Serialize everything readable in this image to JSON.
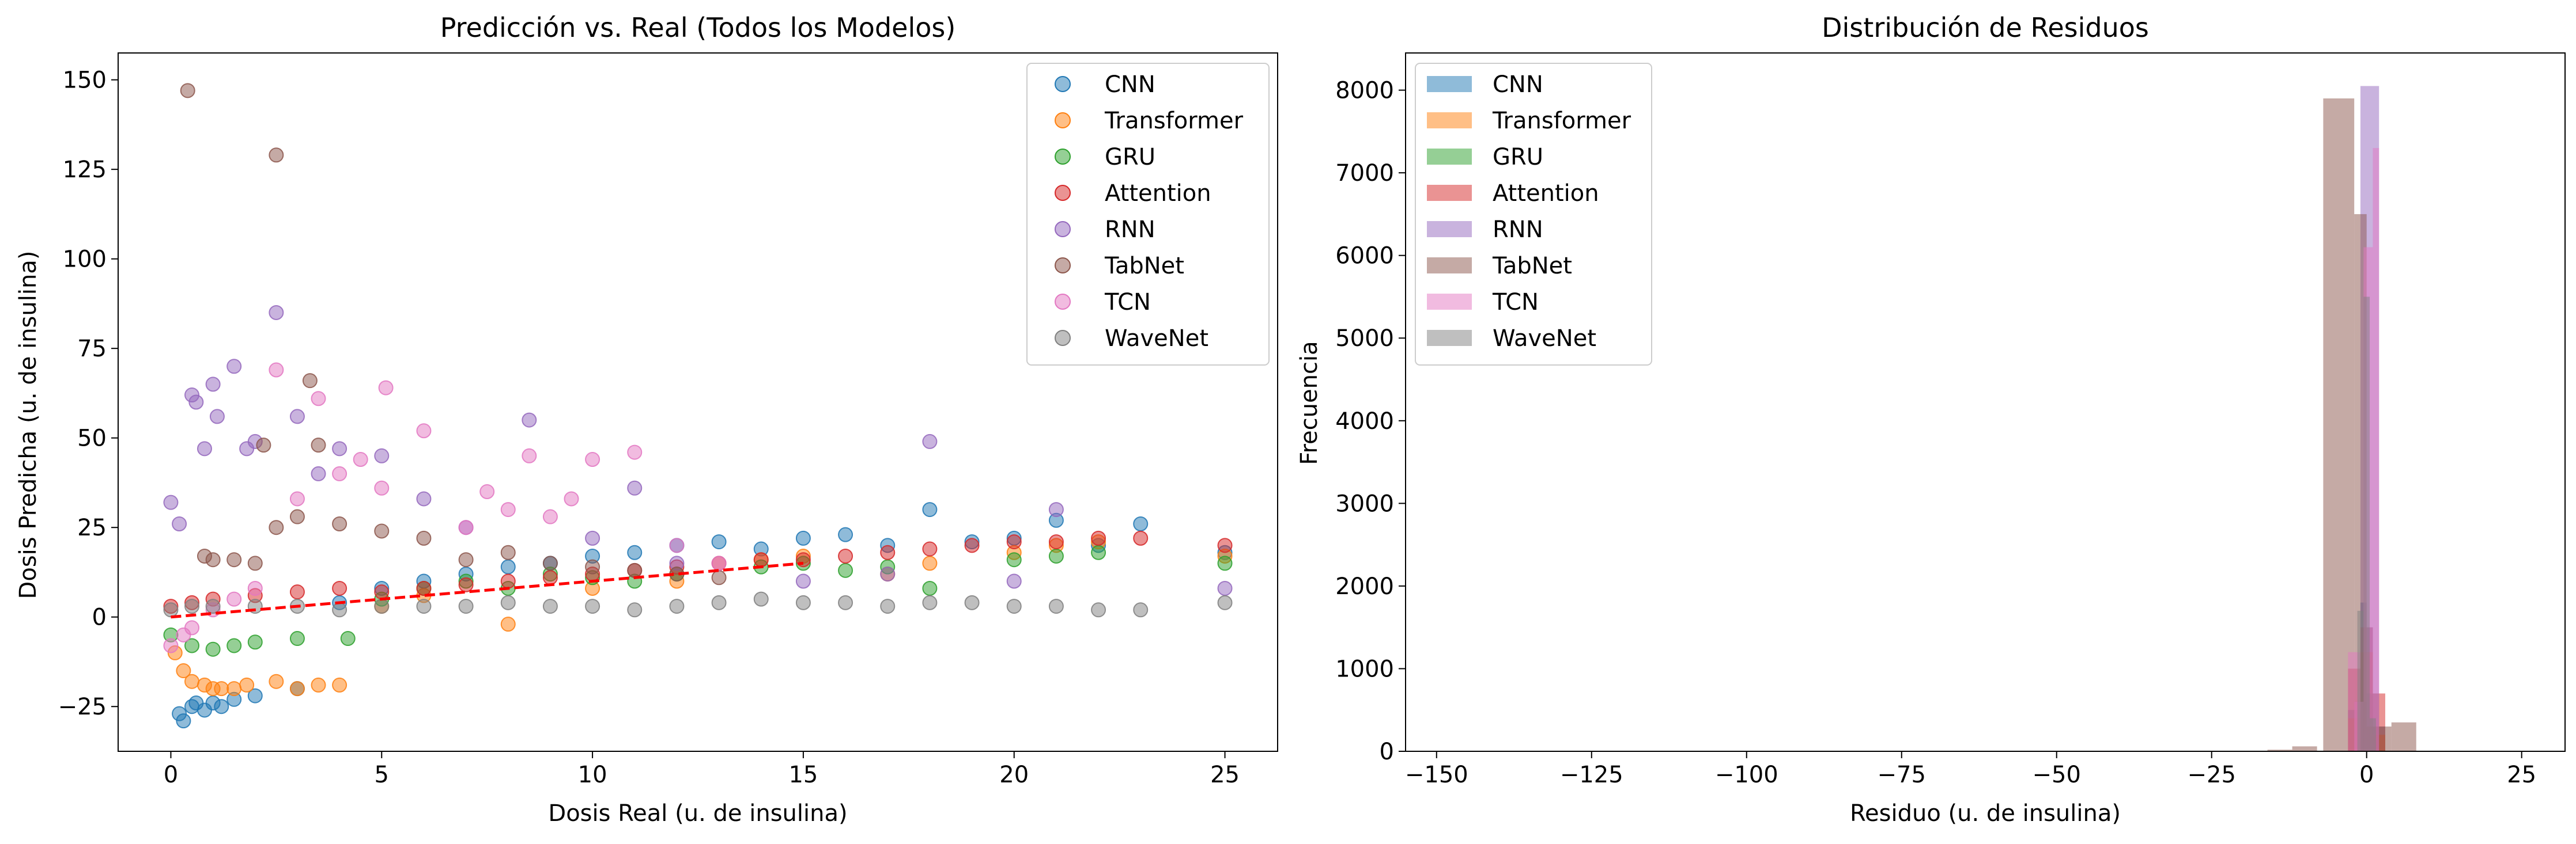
{
  "chart_data": [
    {
      "type": "scatter",
      "title": "Predicción vs. Real (Todos los Modelos)",
      "xlabel": "Dosis Real (u. de insulina)",
      "ylabel": "Dosis Predicha (u. de insulina)",
      "xlim": [
        -1.25,
        26.25
      ],
      "ylim": [
        -37.5,
        157.5
      ],
      "xticks": [
        0,
        5,
        10,
        15,
        20,
        25
      ],
      "yticks": [
        -25,
        0,
        25,
        50,
        75,
        100,
        125,
        150
      ],
      "legend_position": "top-right",
      "reference_line": {
        "x": [
          0,
          15
        ],
        "y": [
          0,
          15
        ],
        "color": "#ff0000",
        "style": "dashed"
      },
      "series": [
        {
          "name": "CNN",
          "color": "#1f77b4",
          "x": [
            0.2,
            0.3,
            0.5,
            0.6,
            0.8,
            1.0,
            1.2,
            1.5,
            2.0,
            3.0,
            4.0,
            5.0,
            6.0,
            7.0,
            8.0,
            9.0,
            10.0,
            11.0,
            12.0,
            13.0,
            14.0,
            15.0,
            16.0,
            17.0,
            18.0,
            19.0,
            20.0,
            21.0,
            22.0,
            23.0,
            25.0
          ],
          "y": [
            -27,
            -29,
            -25,
            -24,
            -26,
            -24,
            -25,
            -23,
            -22,
            -20,
            4,
            8,
            10,
            12,
            14,
            15,
            17,
            18,
            20,
            21,
            19,
            22,
            23,
            20,
            30,
            21,
            22,
            27,
            20,
            26,
            18
          ]
        },
        {
          "name": "Transformer",
          "color": "#ff7f0e",
          "x": [
            0.1,
            0.3,
            0.5,
            0.8,
            1.0,
            1.2,
            1.5,
            1.8,
            2.5,
            3.0,
            3.5,
            4.0,
            5.0,
            6.0,
            8.0,
            10.0,
            12.0,
            14.0,
            15.0,
            17.0,
            18.0,
            20.0,
            21.0,
            22.0,
            25.0
          ],
          "y": [
            -10,
            -15,
            -18,
            -19,
            -20,
            -20,
            -20,
            -19,
            -18,
            -20,
            -19,
            -19,
            3,
            6,
            -2,
            8,
            10,
            16,
            17,
            12,
            15,
            18,
            20,
            21,
            17
          ]
        },
        {
          "name": "GRU",
          "color": "#2ca02c",
          "x": [
            0.0,
            0.5,
            1.0,
            1.5,
            2.0,
            3.0,
            4.2,
            5.0,
            6.0,
            7.0,
            8.0,
            9.0,
            10.0,
            11.0,
            12.0,
            14.0,
            15.0,
            16.0,
            17.0,
            18.0,
            20.0,
            21.0,
            22.0,
            25.0
          ],
          "y": [
            -5,
            -8,
            -9,
            -8,
            -7,
            -6,
            -6,
            5,
            8,
            10,
            8,
            12,
            11,
            10,
            12,
            14,
            15,
            13,
            14,
            8,
            16,
            17,
            18,
            15
          ]
        },
        {
          "name": "Attention",
          "color": "#d62728",
          "x": [
            0.0,
            0.5,
            1.0,
            2.0,
            3.0,
            4.0,
            5.0,
            6.0,
            7.0,
            8.0,
            9.0,
            10.0,
            11.0,
            12.0,
            13.0,
            14.0,
            15.0,
            16.0,
            17.0,
            18.0,
            19.0,
            20.0,
            21.0,
            22.0,
            23.0,
            25.0
          ],
          "y": [
            3,
            4,
            5,
            6,
            7,
            8,
            7,
            8,
            9,
            10,
            11,
            12,
            13,
            14,
            15,
            16,
            16,
            17,
            18,
            19,
            20,
            21,
            21,
            22,
            22,
            20
          ]
        },
        {
          "name": "RNN",
          "color": "#9467bd",
          "x": [
            0.0,
            0.2,
            0.5,
            0.6,
            0.8,
            1.0,
            1.1,
            1.5,
            1.8,
            2.0,
            2.5,
            3.0,
            3.5,
            4.0,
            5.0,
            6.0,
            7.0,
            8.5,
            10.0,
            11.0,
            12.0,
            15.0,
            17.0,
            18.0,
            20.0,
            21.0,
            25.0
          ],
          "y": [
            32,
            26,
            62,
            60,
            47,
            65,
            56,
            70,
            47,
            49,
            85,
            56,
            40,
            47,
            45,
            33,
            25,
            55,
            22,
            36,
            15,
            10,
            12,
            49,
            10,
            30,
            8
          ]
        },
        {
          "name": "TabNet",
          "color": "#8c564b",
          "x": [
            0.4,
            2.5,
            3.3,
            3.5,
            2.2,
            0.8,
            1.0,
            1.5,
            2.0,
            2.5,
            3.0,
            4.0,
            5.0,
            6.0,
            7.0,
            8.0,
            9.0,
            10.0,
            11.0,
            12.0,
            13.0
          ],
          "y": [
            147,
            129,
            66,
            48,
            48,
            17,
            16,
            16,
            15,
            25,
            28,
            26,
            24,
            22,
            16,
            18,
            15,
            14,
            13,
            12,
            11
          ]
        },
        {
          "name": "TCN",
          "color": "#e377c2",
          "x": [
            0.0,
            0.3,
            0.5,
            1.0,
            1.5,
            2.0,
            2.5,
            3.0,
            3.5,
            4.0,
            4.5,
            5.0,
            5.1,
            6.0,
            7.0,
            7.5,
            8.0,
            8.5,
            9.0,
            9.5,
            10.0,
            11.0,
            12.0,
            13.0
          ],
          "y": [
            -8,
            -5,
            -3,
            2,
            5,
            8,
            69,
            33,
            61,
            40,
            44,
            36,
            64,
            52,
            25,
            35,
            30,
            45,
            28,
            33,
            44,
            46,
            20,
            15
          ]
        },
        {
          "name": "WaveNet",
          "color": "#7f7f7f",
          "x": [
            0.0,
            0.5,
            1.0,
            2.0,
            3.0,
            4.0,
            5.0,
            6.0,
            7.0,
            8.0,
            9.0,
            10.0,
            11.0,
            12.0,
            13.0,
            14.0,
            15.0,
            16.0,
            17.0,
            18.0,
            19.0,
            20.0,
            21.0,
            22.0,
            23.0,
            25.0
          ],
          "y": [
            2,
            3,
            3,
            3,
            3,
            2,
            3,
            3,
            3,
            4,
            3,
            3,
            2,
            3,
            4,
            5,
            4,
            4,
            3,
            4,
            4,
            3,
            3,
            2,
            2,
            4
          ]
        }
      ]
    },
    {
      "type": "histogram",
      "title": "Distribución de Residuos",
      "xlabel": "Residuo (u. de insulina)",
      "ylabel": "Frecuencia",
      "xlim": [
        -155,
        32
      ],
      "ylim": [
        0,
        8450
      ],
      "xticks": [
        -150,
        -125,
        -100,
        -75,
        -50,
        -25,
        0,
        25
      ],
      "yticks": [
        0,
        1000,
        2000,
        3000,
        4000,
        5000,
        6000,
        7000,
        8000
      ],
      "legend_position": "top-left",
      "series": [
        {
          "name": "CNN",
          "color": "#1f77b4",
          "bins": [
            [
              -3,
              -1,
              500
            ],
            [
              -1,
              0,
              1800
            ],
            [
              0,
              1,
              1500
            ],
            [
              1,
              3,
              300
            ]
          ]
        },
        {
          "name": "Transformer",
          "color": "#ff7f0e",
          "bins": [
            [
              -3,
              -1,
              400
            ],
            [
              -1,
              1,
              1200
            ],
            [
              1,
              3,
              200
            ]
          ]
        },
        {
          "name": "GRU",
          "color": "#2ca02c",
          "bins": [
            [
              -2,
              0,
              600
            ],
            [
              0,
              2,
              700
            ]
          ]
        },
        {
          "name": "Attention",
          "color": "#d62728",
          "bins": [
            [
              -3,
              -1,
              1000
            ],
            [
              -1,
              1,
              1500
            ],
            [
              1,
              3,
              700
            ]
          ]
        },
        {
          "name": "RNN",
          "color": "#9467bd",
          "bins": [
            [
              -1,
              2,
              8050
            ]
          ]
        },
        {
          "name": "TabNet",
          "color": "#8c564b",
          "bins": [
            [
              -16,
              -12,
              20
            ],
            [
              -12,
              -8,
              60
            ],
            [
              -7,
              -2,
              7900
            ],
            [
              -2,
              0,
              6500
            ],
            [
              0,
              4,
              300
            ],
            [
              4,
              8,
              350
            ]
          ]
        },
        {
          "name": "TCN",
          "color": "#e377c2",
          "bins": [
            [
              -3,
              -1,
              1200
            ],
            [
              -0.5,
              1,
              6100
            ],
            [
              1,
              2,
              7300
            ],
            [
              -2,
              -0.5,
              600
            ]
          ]
        },
        {
          "name": "WaveNet",
          "color": "#7f7f7f",
          "bins": [
            [
              -1.5,
              -0.5,
              1700
            ],
            [
              -0.5,
              0.5,
              5500
            ],
            [
              0.5,
              1.5,
              400
            ]
          ]
        }
      ]
    }
  ]
}
